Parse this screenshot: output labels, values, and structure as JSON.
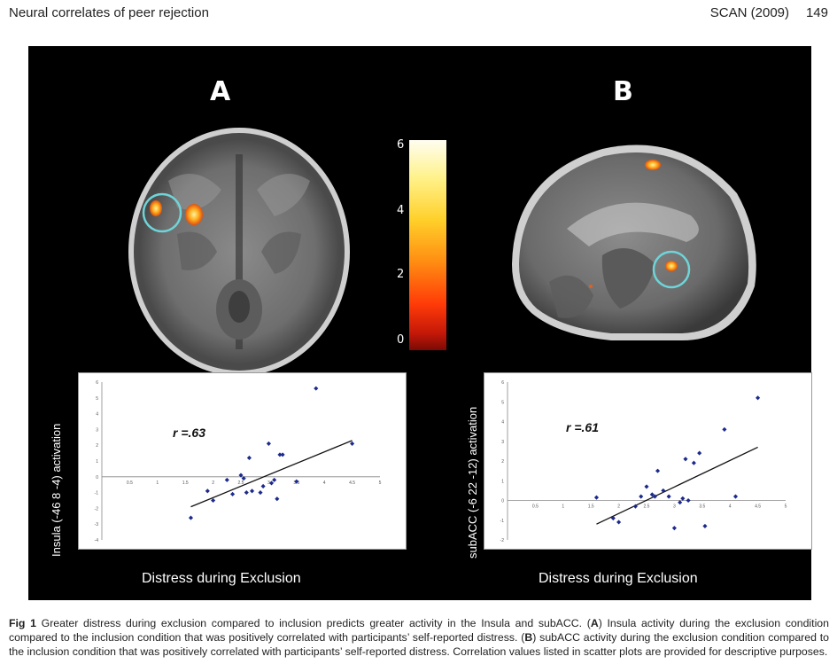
{
  "header": {
    "title": "Neural correlates of peer rejection",
    "journal": "SCAN (2009)",
    "page": "149"
  },
  "figure": {
    "panel_a_label": "A",
    "panel_b_label": "B",
    "colorbar_ticks": [
      "6",
      "4",
      "2",
      "0"
    ]
  },
  "chart_data": [
    {
      "type": "scatter",
      "panel": "A",
      "ylabel": "Insula (-46 8 -4) activation",
      "xlabel": "Distress during Exclusion",
      "annotation": "r =.63",
      "xlim": [
        0,
        5
      ],
      "ylim": [
        -4,
        6
      ],
      "xticks": [
        "0.5",
        "1",
        "1.5",
        "2",
        "2.5",
        "3",
        "3.5",
        "4",
        "4.5",
        "5"
      ],
      "yticks": [
        "6",
        "5",
        "4",
        "3",
        "2",
        "1",
        "0",
        "-1",
        "-2",
        "-3",
        "-4"
      ],
      "points": [
        [
          1.6,
          -2.6
        ],
        [
          1.9,
          -0.9
        ],
        [
          2.0,
          -1.5
        ],
        [
          2.25,
          -0.2
        ],
        [
          2.35,
          -1.1
        ],
        [
          2.5,
          0.1
        ],
        [
          2.55,
          -0.1
        ],
        [
          2.6,
          -1.0
        ],
        [
          2.65,
          1.2
        ],
        [
          2.7,
          -0.9
        ],
        [
          2.85,
          -1.0
        ],
        [
          2.9,
          -0.6
        ],
        [
          3.0,
          2.1
        ],
        [
          3.05,
          -0.4
        ],
        [
          3.1,
          -0.2
        ],
        [
          3.15,
          -1.4
        ],
        [
          3.2,
          1.4
        ],
        [
          3.25,
          1.4
        ],
        [
          3.5,
          -0.3
        ],
        [
          3.85,
          5.6
        ],
        [
          4.5,
          2.1
        ]
      ],
      "trendline": [
        [
          1.6,
          -1.9
        ],
        [
          4.5,
          2.3
        ]
      ]
    },
    {
      "type": "scatter",
      "panel": "B",
      "ylabel": "subACC (-6 22 -12) activation",
      "xlabel": "Distress during Exclusion",
      "annotation": "r =.61",
      "xlim": [
        0,
        5
      ],
      "ylim": [
        -2,
        6
      ],
      "xticks": [
        "0.5",
        "1",
        "1.5",
        "2",
        "2.5",
        "3",
        "3.5",
        "4",
        "4.5",
        "5"
      ],
      "yticks": [
        "6",
        "5",
        "4",
        "3",
        "2",
        "1",
        "0",
        "-1",
        "-2"
      ],
      "points": [
        [
          1.6,
          0.15
        ],
        [
          1.9,
          -0.9
        ],
        [
          2.0,
          -1.1
        ],
        [
          2.3,
          -0.3
        ],
        [
          2.4,
          0.2
        ],
        [
          2.5,
          0.7
        ],
        [
          2.6,
          0.3
        ],
        [
          2.65,
          0.2
        ],
        [
          2.7,
          1.5
        ],
        [
          2.8,
          0.5
        ],
        [
          2.9,
          0.2
        ],
        [
          3.0,
          -1.4
        ],
        [
          3.1,
          -0.1
        ],
        [
          3.15,
          0.1
        ],
        [
          3.2,
          2.1
        ],
        [
          3.25,
          0.0
        ],
        [
          3.35,
          1.9
        ],
        [
          3.45,
          2.4
        ],
        [
          3.55,
          -1.3
        ],
        [
          3.9,
          3.6
        ],
        [
          4.1,
          0.2
        ],
        [
          4.5,
          5.2
        ]
      ],
      "trendline": [
        [
          1.6,
          -1.2
        ],
        [
          4.5,
          2.7
        ]
      ]
    }
  ],
  "caption": {
    "label": "Fig 1",
    "text_1": "Greater distress during exclusion compared to inclusion predicts greater activity in the Insula and subACC. (",
    "a": "A",
    "text_2": ") Insula activity during the exclusion condition compared to the inclusion condition that was positively correlated with participants’ self-reported distress. (",
    "b": "B",
    "text_3": ") subACC activity during the exclusion condition compared to the inclusion condition that was positively correlated with participants’ self-reported distress. Correlation values listed in scatter plots are provided for descriptive purposes."
  }
}
